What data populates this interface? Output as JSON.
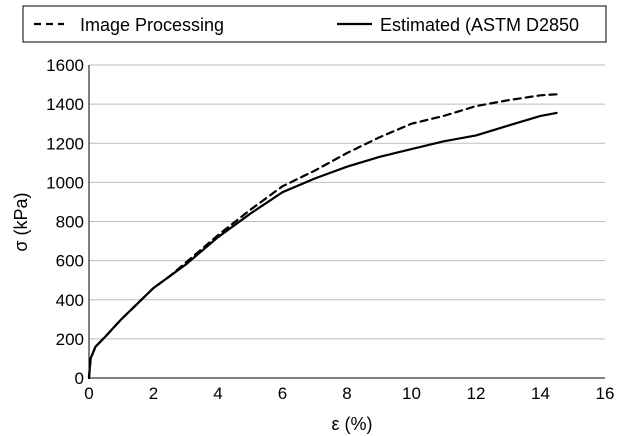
{
  "chart_data": {
    "type": "line",
    "title": "",
    "xlabel": "ε (%)",
    "ylabel": "σ (kPa)",
    "xlim": [
      0,
      16
    ],
    "ylim": [
      0,
      1600
    ],
    "x_ticks": [
      0,
      2,
      4,
      6,
      8,
      10,
      12,
      14,
      16
    ],
    "y_ticks": [
      0,
      200,
      400,
      600,
      800,
      1000,
      1200,
      1400,
      1600
    ],
    "grid": "horizontal",
    "legend_position": "top",
    "series": [
      {
        "name": "Image Processing",
        "style": "dashed",
        "color": "#000000",
        "x": [
          0,
          0.05,
          0.2,
          0.5,
          1,
          1.5,
          2,
          2.5,
          3,
          4,
          5,
          6,
          7,
          8,
          9,
          10,
          11,
          12,
          13,
          14,
          14.5
        ],
        "y": [
          0,
          100,
          160,
          210,
          300,
          380,
          460,
          520,
          590,
          730,
          860,
          980,
          1060,
          1150,
          1230,
          1300,
          1340,
          1390,
          1420,
          1445,
          1450
        ]
      },
      {
        "name": "Estimated (ASTM D2850",
        "style": "solid",
        "color": "#000000",
        "x": [
          0,
          0.05,
          0.2,
          0.5,
          1,
          1.5,
          2,
          2.5,
          3,
          4,
          5,
          6,
          7,
          8,
          9,
          10,
          11,
          12,
          13,
          14,
          14.5
        ],
        "y": [
          0,
          100,
          160,
          210,
          300,
          380,
          460,
          520,
          580,
          720,
          840,
          950,
          1020,
          1080,
          1130,
          1170,
          1210,
          1240,
          1290,
          1340,
          1355
        ]
      }
    ]
  }
}
